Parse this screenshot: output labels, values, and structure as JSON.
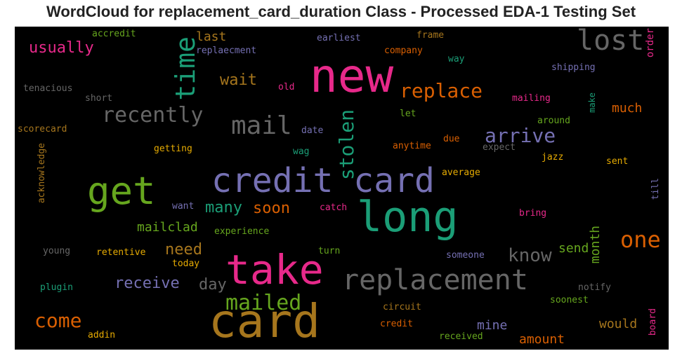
{
  "title": "WordCloud for replacement_card_duration Class - Processed EDA-1 Testing Set",
  "palette": {
    "teal": "#1b9e77",
    "orange": "#d95f02",
    "purple": "#7570b3",
    "magenta": "#e7298a",
    "green": "#66a61e",
    "gold": "#e6ab02",
    "brown": "#a6761d",
    "gray": "#666666"
  },
  "words": [
    "credit card",
    "card",
    "new",
    "take",
    "long",
    "get",
    "replacement",
    "lost",
    "time",
    "mail",
    "recently",
    "one",
    "replace",
    "stolen",
    "mailed",
    "arrive",
    "know",
    "come",
    "usually",
    "wait",
    "need",
    "many",
    "soon",
    "receive",
    "day",
    "month",
    "much",
    "would",
    "send",
    "mailclad",
    "mine",
    "amount",
    "last",
    "experience",
    "shipping",
    "order",
    "company",
    "replaecment",
    "earliest",
    "frame",
    "way",
    "accredit",
    "tenacious",
    "short",
    "old",
    "mailing",
    "let",
    "make",
    "around",
    "scorecard",
    "date",
    "due",
    "getting",
    "wag",
    "anytime",
    "expect",
    "jazz",
    "acknowledge",
    "average",
    "sent",
    "till",
    "want",
    "catch",
    "bring",
    "young",
    "retentive",
    "today",
    "turn",
    "someone",
    "plugin",
    "notify",
    "soonest",
    "circuit",
    "credit",
    "board",
    "addin",
    "received"
  ]
}
